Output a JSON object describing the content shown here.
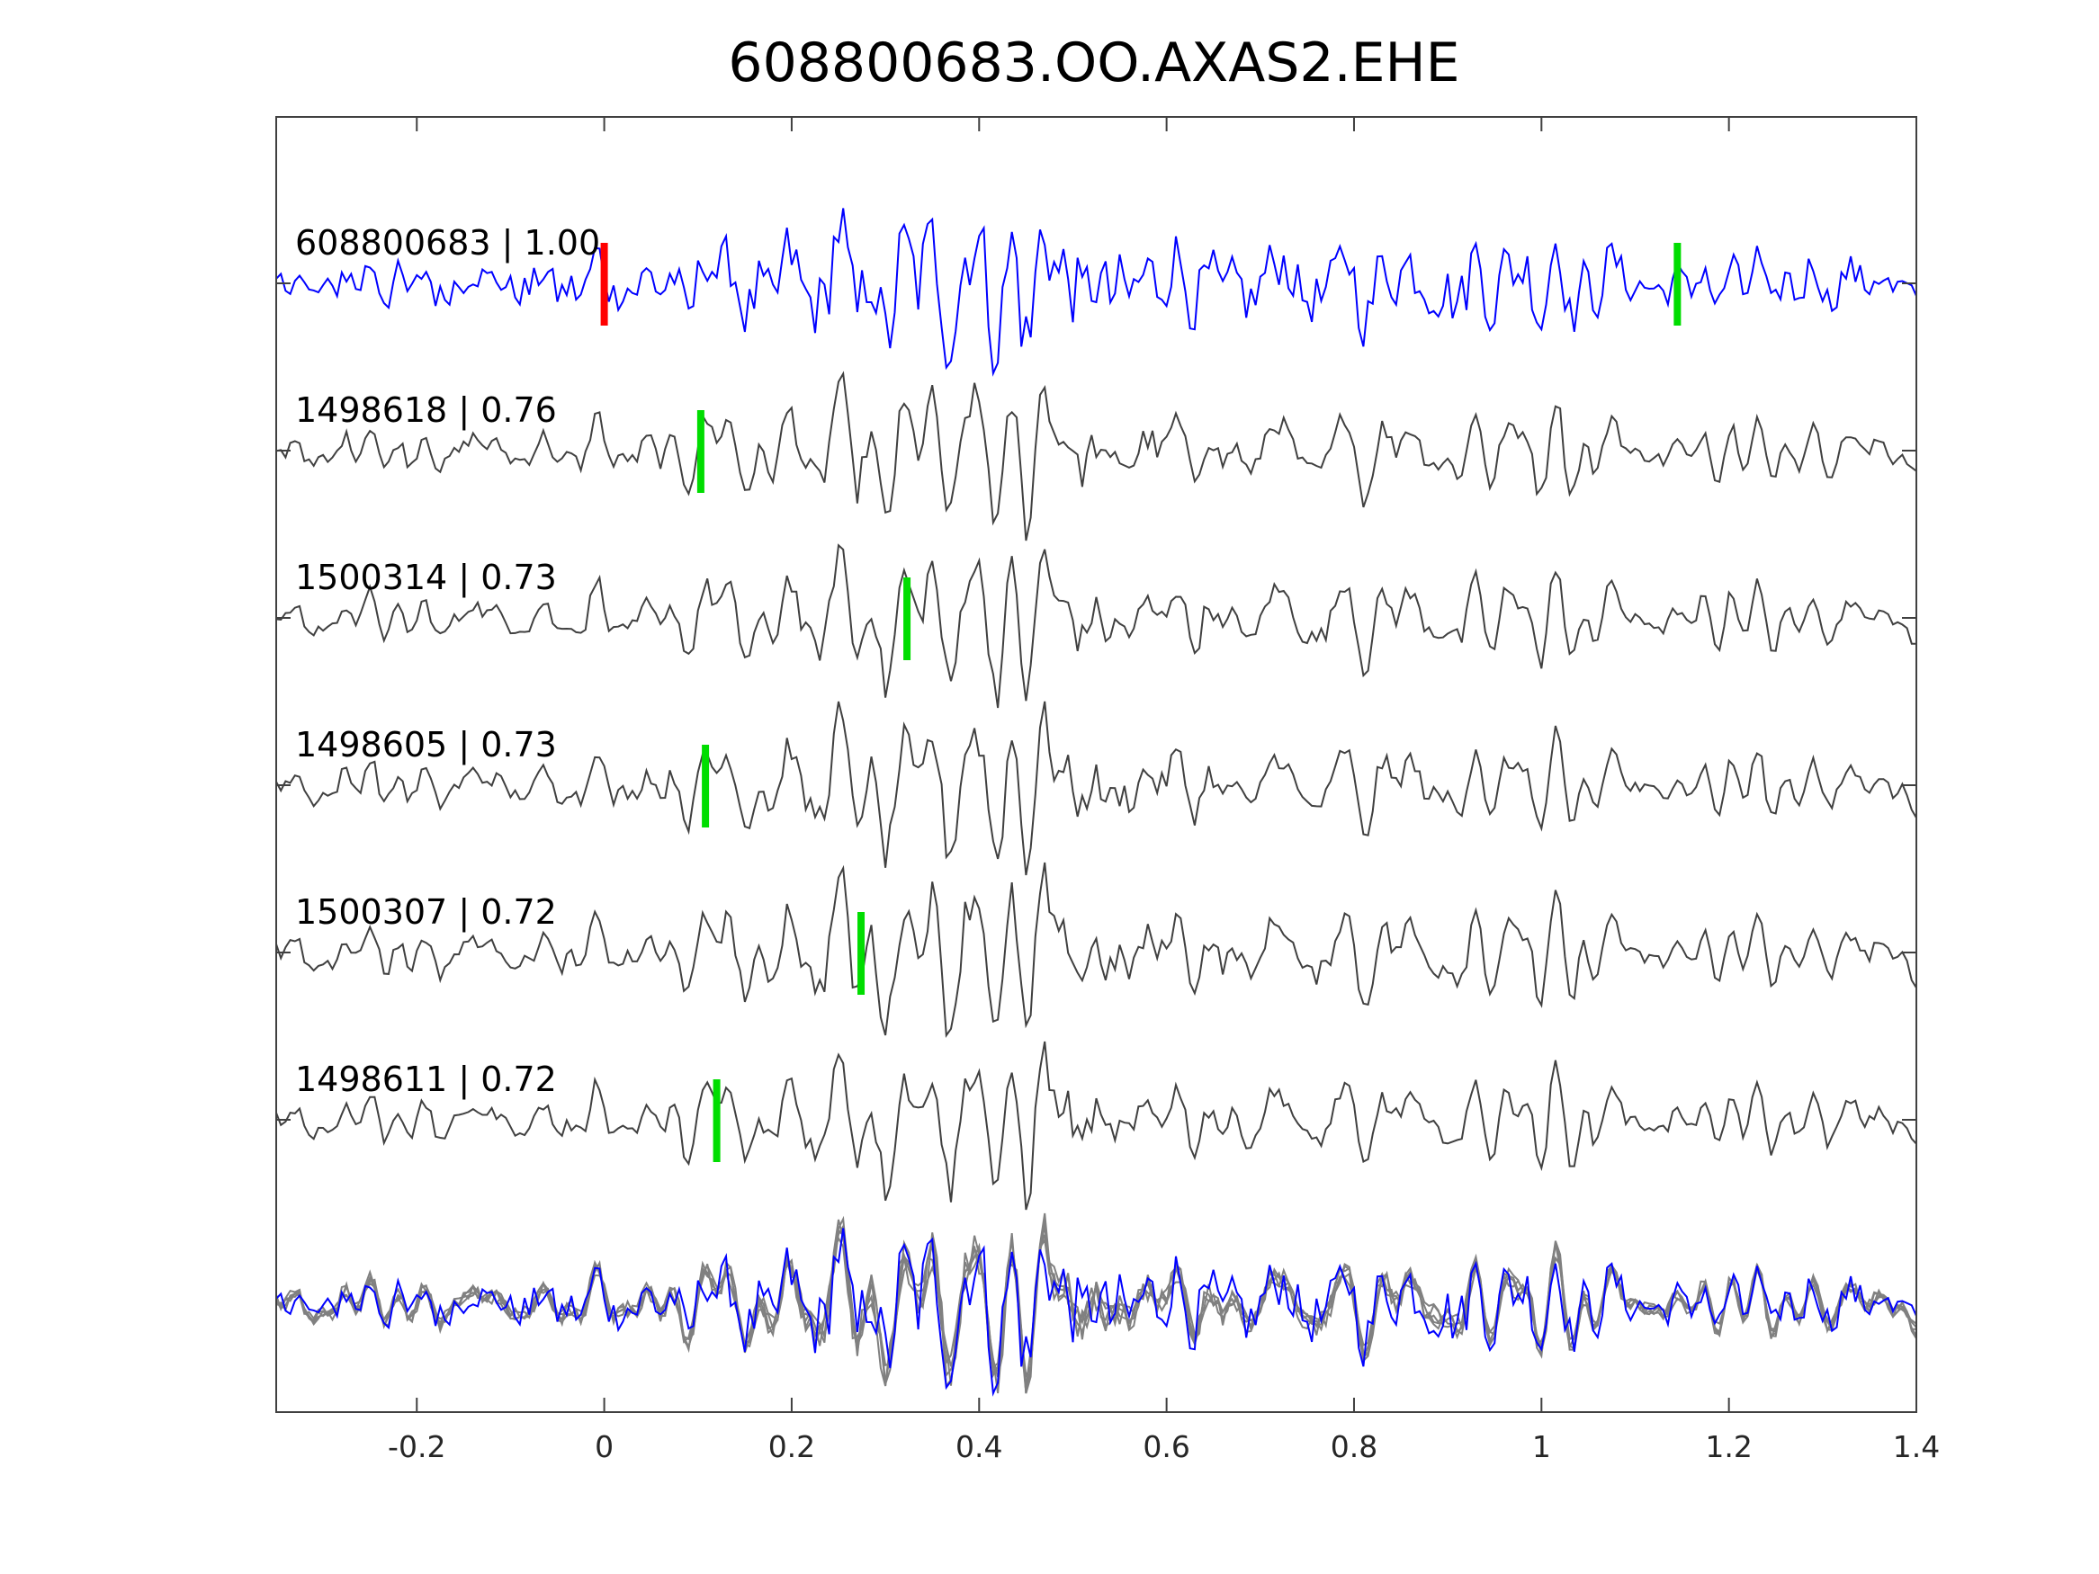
{
  "chart_data": {
    "type": "line",
    "title": "608800683.OO.AXAS2.EHE",
    "xlabel": "",
    "ylabel": "",
    "xlim": [
      -0.35,
      1.4
    ],
    "xticks": [
      -0.2,
      0,
      0.2,
      0.4,
      0.6,
      0.8,
      1,
      1.2,
      1.4
    ],
    "xtick_labels": [
      "-0.2",
      "0",
      "0.2",
      "0.4",
      "0.6",
      "0.8",
      "1",
      "1.2",
      "1.4"
    ],
    "grid": false,
    "traces": [
      {
        "label": "608800683 | 1.00",
        "color": "#0000ff",
        "picks": [
          {
            "t": 0.0,
            "color": "#ff0000"
          },
          {
            "t": 1.145,
            "color": "#00dd00"
          }
        ]
      },
      {
        "label": "1498618 | 0.76",
        "color": "#404040",
        "picks": [
          {
            "t": 0.103,
            "color": "#00dd00"
          }
        ]
      },
      {
        "label": "1500314 | 0.73",
        "color": "#404040",
        "picks": [
          {
            "t": 0.323,
            "color": "#00dd00"
          }
        ]
      },
      {
        "label": "1498605 | 0.73",
        "color": "#404040",
        "picks": [
          {
            "t": 0.108,
            "color": "#00dd00"
          }
        ]
      },
      {
        "label": "1500307 | 0.72",
        "color": "#404040",
        "picks": [
          {
            "t": 0.274,
            "color": "#00dd00"
          }
        ]
      },
      {
        "label": "1498611 | 0.72",
        "color": "#404040",
        "picks": [
          {
            "t": 0.12,
            "color": "#00dd00"
          }
        ]
      }
    ],
    "stack": {
      "template_color": "#0000ff",
      "others_color": "#808080"
    }
  }
}
